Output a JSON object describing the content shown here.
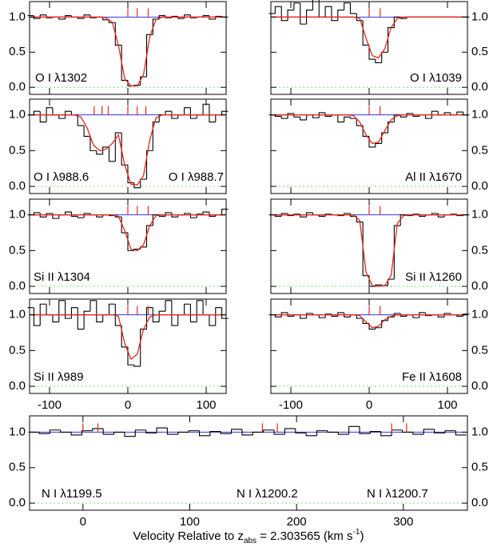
{
  "x_label": [
    "Velocity Relative to z",
    "abs",
    " = 2.303565 (km s",
    "-1",
    ")"
  ],
  "chart_data": [
    {
      "type": "step",
      "labels": [
        "O I λ1302"
      ],
      "x": [
        -124,
        -116,
        -108,
        -100,
        -92,
        -84,
        -76,
        -68,
        -60,
        -52,
        -44,
        -36,
        -28,
        -20,
        -12,
        -4,
        4,
        12,
        20,
        28,
        36,
        44,
        52,
        60,
        68,
        76,
        84,
        92,
        100,
        108,
        116,
        124
      ],
      "values": [
        1.02,
        0.98,
        1.03,
        0.99,
        1.0,
        0.97,
        1.02,
        1.0,
        0.98,
        1.03,
        0.99,
        1.0,
        0.96,
        0.92,
        0.6,
        0.1,
        0.02,
        0.03,
        0.15,
        0.75,
        0.97,
        1.02,
        0.99,
        1.01,
        0.98,
        1.03,
        0.99,
        1.0,
        1.02,
        0.97,
        1.01,
        1.0
      ],
      "model": [
        1,
        1,
        1,
        1,
        1,
        1,
        1,
        1,
        1,
        1,
        1,
        1,
        0.99,
        0.93,
        0.6,
        0.12,
        0.02,
        0.02,
        0.18,
        0.72,
        0.97,
        1,
        1,
        1,
        1,
        1,
        1,
        1,
        1,
        1,
        1,
        1
      ],
      "continuum": 1,
      "components": [
        0,
        12,
        26
      ],
      "xlim": [
        -125.5,
        125.5
      ],
      "ylim": [
        -0.1,
        1.22
      ],
      "xticks": [
        -100,
        0,
        100
      ],
      "yticks": [
        {
          "value": 0,
          "label": "0.0"
        },
        {
          "value": 0.5,
          "label": "0.5"
        },
        {
          "value": 1,
          "label": "1.0"
        }
      ],
      "ytick_side": "left",
      "xtick_labels": false,
      "color": "#000000",
      "model_color": "#e8251c",
      "continuum_color": "#3535e0",
      "component_color": "#e8251c",
      "zero_color": "#7fdc7f"
    },
    {
      "type": "step",
      "labels": [
        "O I λ1039"
      ],
      "x": [
        -124,
        -116,
        -108,
        -100,
        -92,
        -84,
        -76,
        -68,
        -60,
        -52,
        -44,
        -36,
        -28,
        -20,
        -12,
        -4,
        4,
        12,
        20,
        28,
        36,
        44,
        52,
        60,
        68,
        76,
        84,
        92,
        100,
        108,
        116,
        124
      ],
      "values": [
        1.05,
        1.15,
        0.95,
        1.1,
        1.2,
        0.9,
        1.1,
        1.25,
        1.0,
        1.15,
        0.95,
        1.1,
        1.2,
        1.05,
        0.95,
        0.6,
        0.4,
        0.35,
        0.5,
        0.85,
        1.0,
        0.98,
        1.0,
        1.0,
        1.0,
        1.0,
        1.0,
        1.0,
        1.0,
        1.0,
        1.0,
        1.0
      ],
      "model": [
        1,
        1,
        1,
        1,
        1,
        1,
        1,
        1,
        1,
        1,
        1,
        1,
        1,
        1,
        0.98,
        0.7,
        0.45,
        0.42,
        0.55,
        0.85,
        0.98,
        1,
        1,
        1,
        1,
        1,
        1,
        1,
        1,
        1,
        1,
        1
      ],
      "continuum": 1,
      "components": [
        0,
        14
      ],
      "xlim": [
        -125.5,
        125.5
      ],
      "ylim": [
        -0.1,
        1.22
      ],
      "xticks": [
        -100,
        0,
        100
      ],
      "yticks": [
        {
          "value": 0,
          "label": "0.0"
        },
        {
          "value": 0.5,
          "label": "0.5"
        },
        {
          "value": 1,
          "label": "1.0"
        }
      ],
      "ytick_side": "right",
      "xtick_labels": false,
      "color": "#000000",
      "model_color": "#e8251c",
      "continuum_color": "#3535e0",
      "component_color": "#e8251c",
      "zero_color": "#7fdc7f"
    },
    {
      "type": "step",
      "labels": [
        "O I λ988.6",
        "O I λ988.7"
      ],
      "x": [
        -124,
        -116,
        -108,
        -100,
        -92,
        -84,
        -76,
        -68,
        -60,
        -52,
        -44,
        -36,
        -28,
        -20,
        -12,
        -4,
        4,
        12,
        20,
        28,
        36,
        44,
        52,
        60,
        68,
        76,
        84,
        92,
        100,
        108,
        116,
        124
      ],
      "values": [
        1.0,
        1.05,
        0.9,
        1.1,
        1.0,
        0.95,
        1.05,
        1.0,
        0.85,
        0.7,
        0.5,
        0.45,
        0.55,
        0.35,
        0.75,
        0.3,
        0.05,
        -0.02,
        0.1,
        0.5,
        0.9,
        1.0,
        1.05,
        0.95,
        1.0,
        1.1,
        0.95,
        1.0,
        1.15,
        0.9,
        1.0,
        1.05
      ],
      "model": [
        1,
        1,
        1,
        1,
        1,
        1,
        1,
        1,
        0.97,
        0.82,
        0.58,
        0.5,
        0.52,
        0.6,
        0.72,
        0.3,
        0.03,
        0.02,
        0.15,
        0.65,
        0.96,
        1,
        1,
        1,
        1,
        1,
        1,
        1,
        1,
        1,
        1,
        1
      ],
      "continuum": 1,
      "components": [
        -43,
        -33,
        -25,
        0,
        12,
        23
      ],
      "xlim": [
        -125.5,
        125.5
      ],
      "ylim": [
        -0.1,
        1.22
      ],
      "xticks": [
        -100,
        0,
        100
      ],
      "yticks": [
        {
          "value": 0,
          "label": "0.0"
        },
        {
          "value": 0.5,
          "label": "0.5"
        },
        {
          "value": 1,
          "label": "1.0"
        }
      ],
      "ytick_side": "left",
      "xtick_labels": false,
      "color": "#000000",
      "model_color": "#e8251c",
      "continuum_color": "#3535e0",
      "component_color": "#e8251c",
      "zero_color": "#7fdc7f"
    },
    {
      "type": "step",
      "labels": [
        "Al II λ1670"
      ],
      "x": [
        -124,
        -116,
        -108,
        -100,
        -92,
        -84,
        -76,
        -68,
        -60,
        -52,
        -44,
        -36,
        -28,
        -20,
        -12,
        -4,
        4,
        12,
        20,
        28,
        36,
        44,
        52,
        60,
        68,
        76,
        84,
        92,
        100,
        108,
        116,
        124
      ],
      "values": [
        1.0,
        0.98,
        0.95,
        1.02,
        0.97,
        0.93,
        1.0,
        0.96,
        1.03,
        0.98,
        1.0,
        0.9,
        0.97,
        0.95,
        0.85,
        0.7,
        0.55,
        0.6,
        0.75,
        0.9,
        1.0,
        0.97,
        1.02,
        0.98,
        1.0,
        0.95,
        1.05,
        1.0,
        1.03,
        1.0,
        1.04,
        1.0
      ],
      "model": [
        1,
        1,
        1,
        1,
        1,
        1,
        1,
        1,
        1,
        1,
        1,
        1,
        1,
        0.99,
        0.9,
        0.72,
        0.6,
        0.62,
        0.78,
        0.93,
        0.99,
        1,
        1,
        1,
        1,
        1,
        1,
        1,
        1,
        1,
        1,
        1
      ],
      "continuum": 1,
      "components": [
        0,
        14
      ],
      "xlim": [
        -125.5,
        125.5
      ],
      "ylim": [
        -0.1,
        1.22
      ],
      "xticks": [
        -100,
        0,
        100
      ],
      "yticks": [
        {
          "value": 0,
          "label": "0.0"
        },
        {
          "value": 0.5,
          "label": "0.5"
        },
        {
          "value": 1,
          "label": "1.0"
        }
      ],
      "ytick_side": "right",
      "xtick_labels": false,
      "color": "#000000",
      "model_color": "#e8251c",
      "continuum_color": "#3535e0",
      "component_color": "#e8251c",
      "zero_color": "#7fdc7f"
    },
    {
      "type": "step",
      "labels": [
        "Si II λ1304"
      ],
      "x": [
        -124,
        -116,
        -108,
        -100,
        -92,
        -84,
        -76,
        -68,
        -60,
        -52,
        -44,
        -36,
        -28,
        -20,
        -12,
        -4,
        4,
        12,
        20,
        28,
        36,
        44,
        52,
        60,
        68,
        76,
        84,
        92,
        100,
        108,
        116,
        124
      ],
      "values": [
        1.0,
        1.03,
        0.97,
        1.02,
        0.95,
        1.0,
        1.04,
        0.98,
        0.96,
        1.02,
        1.0,
        0.97,
        1.0,
        0.99,
        0.97,
        0.75,
        0.5,
        0.52,
        0.55,
        0.85,
        1.0,
        0.98,
        1.03,
        0.97,
        1.0,
        1.02,
        0.96,
        1.01,
        1.04,
        0.98,
        1.0,
        1.08
      ],
      "model": [
        1,
        1,
        1,
        1,
        1,
        1,
        1,
        1,
        1,
        1,
        1,
        1,
        1,
        1,
        0.98,
        0.78,
        0.52,
        0.5,
        0.58,
        0.85,
        0.99,
        1,
        1,
        1,
        1,
        1,
        1,
        1,
        1,
        1,
        1,
        1
      ],
      "continuum": 1,
      "components": [
        0,
        12,
        26
      ],
      "xlim": [
        -125.5,
        125.5
      ],
      "ylim": [
        -0.1,
        1.22
      ],
      "xticks": [
        -100,
        0,
        100
      ],
      "yticks": [
        {
          "value": 0,
          "label": "0.0"
        },
        {
          "value": 0.5,
          "label": "0.5"
        },
        {
          "value": 1,
          "label": "1.0"
        }
      ],
      "ytick_side": "left",
      "xtick_labels": false,
      "color": "#000000",
      "model_color": "#e8251c",
      "continuum_color": "#3535e0",
      "component_color": "#e8251c",
      "zero_color": "#7fdc7f"
    },
    {
      "type": "step",
      "labels": [
        "Si II λ1260"
      ],
      "x": [
        -124,
        -116,
        -108,
        -100,
        -92,
        -84,
        -76,
        -68,
        -60,
        -52,
        -44,
        -36,
        -28,
        -20,
        -12,
        -4,
        4,
        12,
        20,
        28,
        36,
        44,
        52,
        60,
        68,
        76,
        84,
        92,
        100,
        108,
        116,
        124
      ],
      "values": [
        1.0,
        0.98,
        1.02,
        0.99,
        1.01,
        0.97,
        1.03,
        1.0,
        0.98,
        1.01,
        1.0,
        0.99,
        1.02,
        0.98,
        0.9,
        0.15,
        0.0,
        0.02,
        0.01,
        0.1,
        0.85,
        1.0,
        0.99,
        1.01,
        0.98,
        1.0,
        1.02,
        0.97,
        1.0,
        1.01,
        0.99,
        1.0
      ],
      "model": [
        1,
        1,
        1,
        1,
        1,
        1,
        1,
        1,
        1,
        1,
        1,
        1,
        1,
        1,
        0.92,
        0.2,
        0.01,
        0.0,
        0.01,
        0.15,
        0.88,
        0.99,
        1,
        1,
        1,
        1,
        1,
        1,
        1,
        1,
        1,
        1
      ],
      "continuum": 1,
      "components": [
        0,
        14
      ],
      "xlim": [
        -125.5,
        125.5
      ],
      "ylim": [
        -0.1,
        1.22
      ],
      "xticks": [
        -100,
        0,
        100
      ],
      "yticks": [
        {
          "value": 0,
          "label": "0.0"
        },
        {
          "value": 0.5,
          "label": "0.5"
        },
        {
          "value": 1,
          "label": "1.0"
        }
      ],
      "ytick_side": "right",
      "xtick_labels": false,
      "color": "#000000",
      "model_color": "#e8251c",
      "continuum_color": "#3535e0",
      "component_color": "#e8251c",
      "zero_color": "#7fdc7f"
    },
    {
      "type": "step",
      "labels": [
        "Si II λ989"
      ],
      "x": [
        -124,
        -116,
        -108,
        -100,
        -92,
        -84,
        -76,
        -68,
        -60,
        -52,
        -44,
        -36,
        -28,
        -20,
        -12,
        -4,
        4,
        12,
        20,
        28,
        36,
        44,
        52,
        60,
        68,
        76,
        84,
        92,
        100,
        108,
        116,
        124
      ],
      "values": [
        1.1,
        0.85,
        1.15,
        1.0,
        0.9,
        1.2,
        0.95,
        1.1,
        0.8,
        1.05,
        1.2,
        0.9,
        1.0,
        1.15,
        0.85,
        0.55,
        0.3,
        0.28,
        0.8,
        1.1,
        0.9,
        1.05,
        1.2,
        0.85,
        1.0,
        1.15,
        0.9,
        1.2,
        1.0,
        0.85,
        1.1,
        0.95
      ],
      "model": [
        1,
        1,
        1,
        1,
        1,
        1,
        1,
        1,
        1,
        1,
        1,
        1,
        1,
        1,
        0.98,
        0.6,
        0.38,
        0.45,
        0.8,
        0.97,
        1,
        1,
        1,
        1,
        1,
        1,
        1,
        1,
        1,
        1,
        1,
        1
      ],
      "continuum": 1,
      "components": [
        0,
        12,
        26
      ],
      "xlim": [
        -125.5,
        125.5
      ],
      "ylim": [
        -0.1,
        1.22
      ],
      "xticks": [
        -100,
        0,
        100
      ],
      "yticks": [
        {
          "value": 0,
          "label": "0.0"
        },
        {
          "value": 0.5,
          "label": "0.5"
        },
        {
          "value": 1,
          "label": "1.0"
        }
      ],
      "ytick_side": "left",
      "xtick_labels": true,
      "color": "#000000",
      "model_color": "#e8251c",
      "continuum_color": "#3535e0",
      "component_color": "#e8251c",
      "zero_color": "#7fdc7f"
    },
    {
      "type": "step",
      "labels": [
        "Fe II λ1608"
      ],
      "x": [
        -124,
        -116,
        -108,
        -100,
        -92,
        -84,
        -76,
        -68,
        -60,
        -52,
        -44,
        -36,
        -28,
        -20,
        -12,
        -4,
        4,
        12,
        20,
        28,
        36,
        44,
        52,
        60,
        68,
        76,
        84,
        92,
        100,
        108,
        116,
        124
      ],
      "values": [
        1.0,
        0.97,
        1.03,
        0.98,
        1.0,
        0.95,
        1.02,
        1.0,
        0.96,
        1.01,
        0.98,
        1.03,
        0.97,
        1.0,
        0.95,
        0.88,
        0.8,
        0.82,
        0.92,
        0.97,
        1.02,
        0.98,
        1.0,
        0.96,
        1.03,
        0.99,
        1.0,
        0.97,
        1.02,
        1.0,
        0.98,
        1.01
      ],
      "model": [
        1,
        1,
        1,
        1,
        1,
        1,
        1,
        1,
        1,
        1,
        1,
        1,
        1,
        1,
        0.99,
        0.9,
        0.82,
        0.84,
        0.93,
        0.98,
        1,
        1,
        1,
        1,
        1,
        1,
        1,
        1,
        1,
        1,
        1,
        1
      ],
      "continuum": 1,
      "components": [
        0,
        14
      ],
      "xlim": [
        -125.5,
        125.5
      ],
      "ylim": [
        -0.1,
        1.22
      ],
      "xticks": [
        -100,
        0,
        100
      ],
      "yticks": [
        {
          "value": 0,
          "label": "0.0"
        },
        {
          "value": 0.5,
          "label": "0.5"
        },
        {
          "value": 1,
          "label": "1.0"
        }
      ],
      "ytick_side": "right",
      "xtick_labels": true,
      "color": "#000000",
      "model_color": "#e8251c",
      "continuum_color": "#3535e0",
      "component_color": "#e8251c",
      "zero_color": "#7fdc7f"
    },
    {
      "type": "step",
      "labels": [
        "N I λ1199.5",
        "N I λ1200.2",
        "N I λ1200.7"
      ],
      "x": [
        -46,
        -36,
        -26,
        -16,
        -6,
        4,
        14,
        24,
        34,
        44,
        54,
        64,
        74,
        84,
        94,
        104,
        114,
        124,
        134,
        144,
        154,
        164,
        174,
        184,
        194,
        204,
        214,
        224,
        234,
        244,
        254,
        264,
        274,
        284,
        294,
        304,
        314,
        324,
        334,
        344,
        354
      ],
      "values": [
        1.0,
        0.98,
        1.03,
        1.0,
        0.96,
        1.02,
        1.05,
        0.97,
        1.0,
        0.94,
        1.03,
        0.99,
        1.06,
        0.97,
        1.0,
        1.02,
        0.95,
        1.01,
        0.98,
        1.04,
        0.96,
        1.0,
        1.03,
        0.97,
        1.05,
        0.99,
        0.95,
        1.02,
        1.0,
        0.97,
        1.08,
        0.98,
        1.01,
        0.95,
        1.03,
        1.0,
        0.97,
        1.04,
        0.99,
        1.02,
        0.96
      ],
      "continuum": 1,
      "components": [
        0,
        14,
        168,
        182,
        289,
        303
      ],
      "xlim": [
        -50,
        360
      ],
      "ylim": [
        -0.1,
        1.23
      ],
      "xticks": [
        0,
        100,
        200,
        300
      ],
      "yticks": [
        {
          "value": 0,
          "label": "0.0"
        },
        {
          "value": 0.5,
          "label": "0.5"
        },
        {
          "value": 1,
          "label": "1.0"
        }
      ],
      "ytick_side": "both",
      "xtick_labels": true,
      "color": "#000000",
      "continuum_color": "#3535e0",
      "component_color": "#e8251c",
      "zero_color": "#7fdc7f"
    }
  ]
}
